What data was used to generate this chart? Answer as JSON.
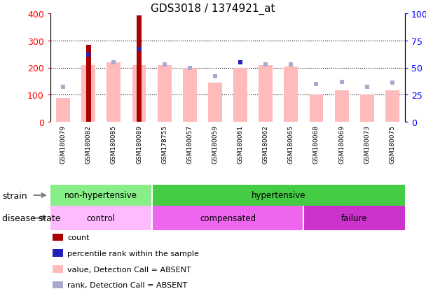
{
  "title": "GDS3018 / 1374921_at",
  "samples": [
    "GSM180079",
    "GSM180082",
    "GSM180085",
    "GSM180089",
    "GSM178755",
    "GSM180057",
    "GSM180059",
    "GSM180061",
    "GSM180062",
    "GSM180065",
    "GSM180068",
    "GSM180069",
    "GSM180073",
    "GSM180075"
  ],
  "count_values": [
    0,
    285,
    0,
    393,
    0,
    0,
    0,
    0,
    0,
    0,
    0,
    0,
    0,
    0
  ],
  "count_shown": [
    false,
    true,
    false,
    true,
    false,
    false,
    false,
    false,
    false,
    false,
    false,
    false,
    false,
    false
  ],
  "percentile_values": [
    0,
    62,
    0,
    67,
    0,
    0,
    0,
    55,
    0,
    0,
    0,
    0,
    0,
    0
  ],
  "percentile_shown": [
    false,
    true,
    false,
    true,
    false,
    false,
    false,
    true,
    false,
    false,
    false,
    false,
    false,
    false
  ],
  "value_absent": [
    88,
    210,
    220,
    210,
    210,
    200,
    145,
    200,
    210,
    205,
    100,
    115,
    100,
    117
  ],
  "rank_absent": [
    32,
    62,
    55,
    67,
    53,
    50,
    42,
    55,
    53,
    53,
    35,
    37,
    32,
    36
  ],
  "ylim_left": [
    0,
    400
  ],
  "ylim_right": [
    0,
    100
  ],
  "yticks_left": [
    0,
    100,
    200,
    300,
    400
  ],
  "yticks_right": [
    0,
    25,
    50,
    75,
    100
  ],
  "ytick_labels_right": [
    "0",
    "25",
    "50",
    "75",
    "100%"
  ],
  "strain_groups": [
    {
      "label": "non-hypertensive",
      "start": 0,
      "end": 4,
      "color": "#88ee88"
    },
    {
      "label": "hypertensive",
      "start": 4,
      "end": 14,
      "color": "#44cc44"
    }
  ],
  "disease_groups": [
    {
      "label": "control",
      "start": 0,
      "end": 4,
      "color": "#ffbbff"
    },
    {
      "label": "compensated",
      "start": 4,
      "end": 10,
      "color": "#ee66ee"
    },
    {
      "label": "failure",
      "start": 10,
      "end": 14,
      "color": "#cc33cc"
    }
  ],
  "count_color": "#aa0000",
  "percentile_color": "#2222bb",
  "value_absent_color": "#ffbbbb",
  "rank_absent_color": "#aaaacc",
  "bg_color": "#ffffff",
  "xtick_bg_color": "#cccccc",
  "legend_items": [
    {
      "label": "count",
      "color": "#aa0000"
    },
    {
      "label": "percentile rank within the sample",
      "color": "#2222bb"
    },
    {
      "label": "value, Detection Call = ABSENT",
      "color": "#ffbbbb"
    },
    {
      "label": "rank, Detection Call = ABSENT",
      "color": "#aaaacc"
    }
  ]
}
